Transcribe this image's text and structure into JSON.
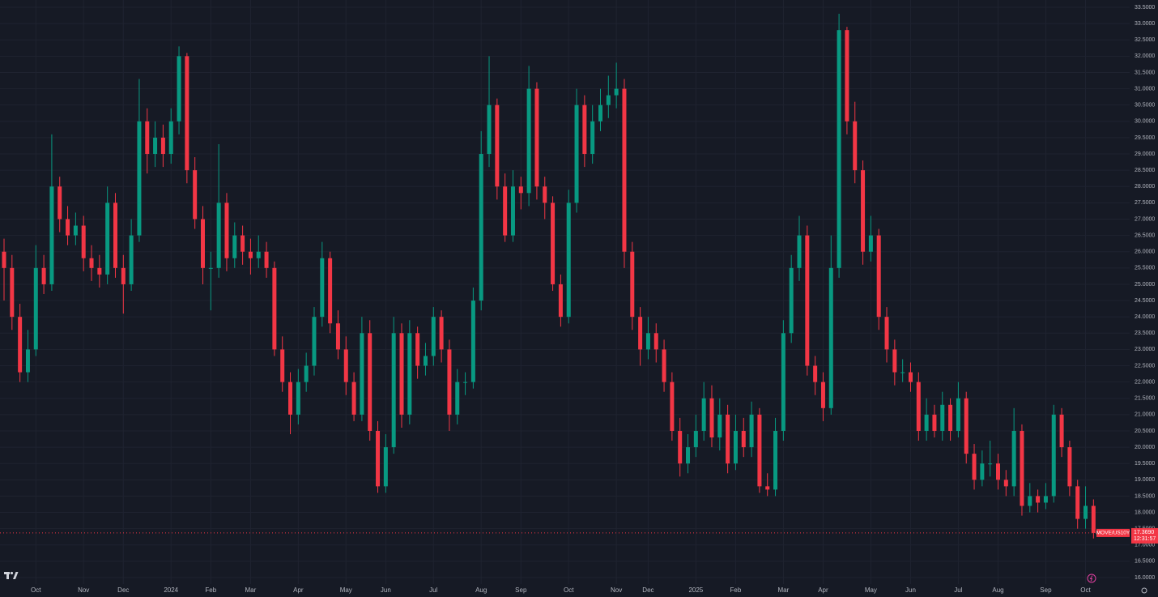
{
  "chart_data": {
    "type": "candlestick",
    "symbol": "MOVE/US10Y",
    "countdown": "12:31:57",
    "last_price": {
      "value": 17.369,
      "label": "17.3690"
    },
    "up_color": "#089981",
    "down_color": "#f23645",
    "open": [
      26.0,
      25.5,
      24.0,
      22.3,
      23.0,
      25.5,
      25.0,
      28.0,
      27.0,
      26.5,
      26.8,
      25.8,
      25.5,
      25.3,
      27.5,
      25.5,
      25.0,
      26.5,
      30.0,
      29.0,
      29.5,
      29.0,
      30.0,
      32.0,
      28.5,
      27.0,
      25.5,
      25.5,
      27.5,
      25.8,
      26.5,
      26.0,
      25.8,
      26.0,
      25.5,
      23.0,
      22.0,
      21.0,
      22.0,
      22.5,
      24.0,
      25.8,
      23.8,
      23.0,
      22.0,
      21.0,
      23.5,
      20.5,
      18.8,
      20.0,
      23.5,
      21.0,
      23.5,
      22.5,
      22.8,
      24.0,
      23.0,
      21.0,
      22.0,
      22.0,
      24.5,
      29.0,
      30.5,
      28.0,
      26.5,
      28.0,
      27.8,
      31.0,
      28.0,
      27.5,
      25.0,
      24.0,
      27.5,
      30.5,
      29.0,
      30.0,
      30.5,
      30.8,
      31.0,
      26.0,
      24.0,
      23.0,
      23.5,
      23.0,
      22.0,
      20.5,
      19.5,
      20.0,
      20.5,
      21.5,
      20.3,
      21.0,
      19.5,
      20.5,
      20.0,
      21.0,
      18.8,
      18.7,
      20.5,
      23.5,
      25.5,
      26.5,
      22.5,
      22.0,
      21.2,
      25.5,
      32.8,
      30.0,
      28.5,
      26.0,
      26.5,
      24.0,
      23.0,
      22.3,
      22.3,
      22.0,
      20.5,
      21.0,
      20.5,
      21.3,
      20.5,
      21.5,
      19.8,
      19.0,
      19.5,
      19.5,
      19.0,
      18.8,
      20.5,
      18.2,
      18.5,
      18.3,
      18.5,
      21.0,
      20.0,
      18.8,
      17.8,
      18.2
    ],
    "high": [
      26.4,
      25.9,
      24.4,
      23.6,
      26.2,
      25.9,
      29.6,
      28.3,
      27.4,
      27.2,
      27.1,
      26.2,
      25.9,
      28.0,
      27.8,
      25.9,
      27.0,
      31.3,
      30.4,
      30.0,
      29.9,
      30.4,
      32.3,
      32.1,
      28.9,
      27.4,
      26.0,
      29.3,
      27.8,
      26.9,
      26.8,
      26.4,
      26.5,
      26.3,
      25.7,
      23.4,
      22.3,
      22.4,
      22.9,
      24.3,
      26.3,
      26.0,
      24.2,
      23.4,
      22.3,
      24.0,
      23.9,
      20.8,
      20.4,
      24.0,
      23.8,
      23.9,
      23.7,
      23.2,
      24.3,
      24.2,
      23.3,
      22.4,
      22.3,
      24.9,
      29.7,
      32.0,
      30.7,
      28.4,
      28.5,
      28.3,
      31.7,
      31.2,
      28.3,
      27.7,
      25.3,
      27.9,
      31.0,
      30.8,
      30.5,
      31.0,
      31.4,
      31.8,
      31.3,
      26.3,
      24.3,
      24.0,
      23.8,
      23.3,
      22.3,
      20.9,
      20.4,
      21.0,
      22.0,
      21.9,
      21.5,
      21.3,
      21.0,
      20.9,
      21.4,
      21.2,
      19.2,
      20.9,
      23.9,
      25.9,
      27.1,
      26.8,
      22.8,
      22.3,
      26.5,
      33.3,
      32.9,
      30.6,
      28.8,
      27.1,
      26.7,
      24.3,
      23.3,
      22.7,
      22.6,
      22.3,
      21.5,
      21.3,
      21.7,
      21.5,
      22.0,
      21.7,
      20.1,
      19.9,
      20.2,
      19.8,
      19.3,
      21.2,
      20.7,
      18.9,
      18.7,
      18.9,
      21.3,
      21.2,
      20.2,
      19.0,
      18.8,
      18.4
    ],
    "low": [
      24.5,
      23.6,
      22.0,
      22.0,
      22.8,
      24.7,
      24.8,
      26.6,
      26.2,
      26.2,
      25.4,
      25.1,
      24.9,
      25.0,
      25.2,
      24.1,
      24.8,
      26.3,
      28.4,
      28.6,
      28.6,
      28.7,
      29.6,
      28.1,
      26.7,
      25.0,
      24.2,
      25.2,
      25.4,
      25.5,
      25.6,
      25.3,
      25.5,
      25.2,
      22.8,
      21.7,
      20.4,
      20.7,
      21.7,
      22.2,
      23.7,
      23.5,
      22.7,
      21.6,
      20.8,
      20.8,
      20.2,
      18.6,
      18.6,
      19.8,
      20.6,
      20.7,
      22.1,
      22.2,
      22.5,
      22.6,
      20.5,
      20.7,
      21.6,
      21.8,
      24.2,
      28.6,
      27.6,
      26.3,
      26.3,
      27.3,
      27.4,
      27.6,
      27.0,
      24.8,
      23.7,
      23.8,
      27.2,
      28.6,
      28.7,
      29.7,
      30.1,
      30.4,
      25.5,
      23.6,
      22.5,
      22.7,
      22.6,
      21.7,
      20.2,
      19.1,
      19.2,
      19.7,
      20.2,
      20.0,
      19.9,
      19.2,
      19.3,
      19.7,
      19.7,
      18.6,
      18.5,
      18.5,
      20.2,
      23.2,
      25.1,
      22.2,
      21.6,
      20.8,
      21.0,
      25.2,
      29.6,
      28.1,
      25.6,
      25.7,
      23.6,
      22.6,
      21.9,
      22.0,
      21.7,
      20.2,
      20.2,
      20.3,
      20.2,
      20.2,
      20.3,
      19.5,
      18.7,
      18.8,
      19.1,
      18.7,
      18.5,
      18.5,
      17.9,
      18.0,
      18.0,
      18.1,
      18.3,
      19.7,
      18.5,
      17.5,
      17.5,
      17.2
    ],
    "close": [
      25.5,
      24.0,
      22.3,
      23.0,
      25.5,
      25.0,
      28.0,
      27.0,
      26.5,
      26.8,
      25.8,
      25.5,
      25.3,
      27.5,
      25.5,
      25.0,
      26.5,
      30.0,
      29.0,
      29.5,
      29.0,
      30.0,
      32.0,
      28.5,
      27.0,
      25.5,
      25.5,
      27.5,
      25.8,
      26.5,
      26.0,
      25.8,
      26.0,
      25.5,
      23.0,
      22.0,
      21.0,
      22.0,
      22.5,
      24.0,
      25.8,
      23.8,
      23.0,
      22.0,
      21.0,
      23.5,
      20.5,
      18.8,
      20.0,
      23.5,
      21.0,
      23.5,
      22.5,
      22.8,
      24.0,
      23.0,
      21.0,
      22.0,
      22.0,
      24.5,
      29.0,
      30.5,
      28.0,
      26.5,
      28.0,
      27.8,
      31.0,
      28.0,
      27.5,
      25.0,
      24.0,
      27.5,
      30.5,
      29.0,
      30.0,
      30.5,
      30.8,
      31.0,
      26.0,
      24.0,
      23.0,
      23.5,
      23.0,
      22.0,
      20.5,
      19.5,
      20.0,
      20.5,
      21.5,
      20.3,
      21.0,
      19.5,
      20.5,
      20.0,
      21.0,
      18.8,
      18.7,
      20.5,
      23.5,
      25.5,
      26.5,
      22.5,
      22.0,
      21.2,
      25.5,
      32.8,
      30.0,
      28.5,
      26.0,
      26.5,
      24.0,
      23.0,
      22.3,
      22.3,
      22.0,
      20.5,
      21.0,
      20.5,
      21.3,
      20.5,
      21.5,
      19.8,
      19.0,
      19.5,
      19.5,
      19.0,
      18.8,
      20.5,
      18.2,
      18.5,
      18.3,
      18.5,
      21.0,
      20.0,
      18.8,
      17.8,
      18.2,
      17.369
    ],
    "ylim": [
      16,
      33.5
    ],
    "yticks": [
      {
        "value": 16,
        "label": "16.0000"
      },
      {
        "value": 16.5,
        "label": "16.5000"
      },
      {
        "value": 17,
        "label": "17.0000"
      },
      {
        "value": 17.5,
        "label": "17.5000"
      },
      {
        "value": 18,
        "label": "18.0000"
      },
      {
        "value": 18.5,
        "label": "18.5000"
      },
      {
        "value": 19,
        "label": "19.0000"
      },
      {
        "value": 19.5,
        "label": "19.5000"
      },
      {
        "value": 20,
        "label": "20.0000"
      },
      {
        "value": 20.5,
        "label": "20.5000"
      },
      {
        "value": 21,
        "label": "21.0000"
      },
      {
        "value": 21.5,
        "label": "21.5000"
      },
      {
        "value": 22,
        "label": "22.0000"
      },
      {
        "value": 22.5,
        "label": "22.5000"
      },
      {
        "value": 23,
        "label": "23.0000"
      },
      {
        "value": 23.5,
        "label": "23.5000"
      },
      {
        "value": 24,
        "label": "24.0000"
      },
      {
        "value": 24.5,
        "label": "24.5000"
      },
      {
        "value": 25,
        "label": "25.0000"
      },
      {
        "value": 25.5,
        "label": "25.5000"
      },
      {
        "value": 26,
        "label": "26.0000"
      },
      {
        "value": 26.5,
        "label": "26.5000"
      },
      {
        "value": 27,
        "label": "27.0000"
      },
      {
        "value": 27.5,
        "label": "27.5000"
      },
      {
        "value": 28,
        "label": "28.0000"
      },
      {
        "value": 28.5,
        "label": "28.5000"
      },
      {
        "value": 29,
        "label": "29.0000"
      },
      {
        "value": 29.5,
        "label": "29.5000"
      },
      {
        "value": 30,
        "label": "30.0000"
      },
      {
        "value": 30.5,
        "label": "30.5000"
      },
      {
        "value": 31,
        "label": "31.0000"
      },
      {
        "value": 31.5,
        "label": "31.5000"
      },
      {
        "value": 32,
        "label": "32.0000"
      },
      {
        "value": 32.5,
        "label": "32.5000"
      },
      {
        "value": 33,
        "label": "33.0000"
      },
      {
        "value": 33.5,
        "label": "33.5000"
      }
    ],
    "xticks": [
      {
        "value": 4,
        "label": "Oct"
      },
      {
        "value": 10,
        "label": "Nov"
      },
      {
        "value": 15,
        "label": "Dec"
      },
      {
        "value": 21,
        "label": "2024"
      },
      {
        "value": 26,
        "label": "Feb"
      },
      {
        "value": 31,
        "label": "Mar"
      },
      {
        "value": 37,
        "label": "Apr"
      },
      {
        "value": 43,
        "label": "May"
      },
      {
        "value": 48,
        "label": "Jun"
      },
      {
        "value": 54,
        "label": "Jul"
      },
      {
        "value": 60,
        "label": "Aug"
      },
      {
        "value": 65,
        "label": "Sep"
      },
      {
        "value": 71,
        "label": "Oct"
      },
      {
        "value": 77,
        "label": "Nov"
      },
      {
        "value": 81,
        "label": "Dec"
      },
      {
        "value": 87,
        "label": "2025"
      },
      {
        "value": 92,
        "label": "Feb"
      },
      {
        "value": 98,
        "label": "Mar"
      },
      {
        "value": 103,
        "label": "Apr"
      },
      {
        "value": 109,
        "label": "May"
      },
      {
        "value": 114,
        "label": "Jun"
      },
      {
        "value": 120,
        "label": "Jul"
      },
      {
        "value": 125,
        "label": "Aug"
      },
      {
        "value": 131,
        "label": "Sep"
      },
      {
        "value": 136,
        "label": "Oct"
      }
    ],
    "grid": true
  }
}
